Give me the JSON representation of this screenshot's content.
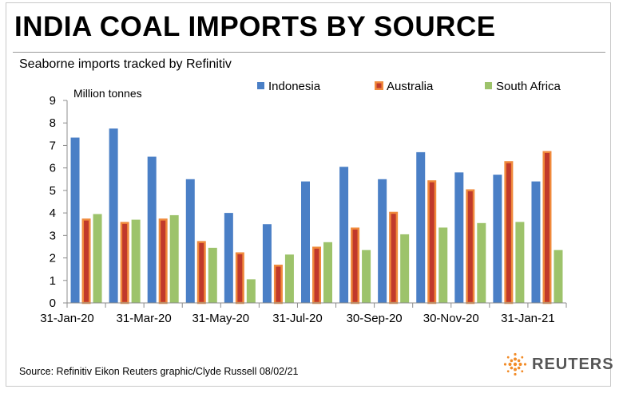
{
  "header": {
    "title": "INDIA COAL IMPORTS BY SOURCE",
    "subtitle": "Seaborne  imports tracked by Refinitiv"
  },
  "footer": {
    "source": "Source: Refinitiv Eikon     Reuters graphic/Clyde Russell 08/02/21",
    "logo_text": "REUTERS"
  },
  "colors": {
    "indonesia": "#4a7fc6",
    "australia_fill": "#c0392b",
    "australia_border": "#f08a3c",
    "south_africa": "#9dc36b",
    "axis": "#8c8c8c"
  },
  "chart_data": {
    "type": "bar",
    "ylabel": "Million tonnes",
    "ylim": [
      0,
      9
    ],
    "yticks": [
      0,
      1,
      2,
      3,
      4,
      5,
      6,
      7,
      8,
      9
    ],
    "x_tick_labels": [
      "31-Jan-20",
      "31-Mar-20",
      "31-May-20",
      "31-Jul-20",
      "30-Sep-20",
      "30-Nov-20",
      "31-Jan-21"
    ],
    "categories": [
      "Jan-20",
      "Feb-20",
      "Mar-20",
      "Apr-20",
      "May-20",
      "Jun-20",
      "Jul-20",
      "Aug-20",
      "Sep-20",
      "Oct-20",
      "Nov-20",
      "Dec-20",
      "Jan-21"
    ],
    "legend_position": "top",
    "series": [
      {
        "name": "Indonesia",
        "values": [
          7.35,
          7.75,
          6.5,
          5.5,
          4.0,
          3.5,
          5.4,
          6.05,
          5.5,
          6.7,
          5.8,
          5.7,
          5.4
        ]
      },
      {
        "name": "Australia",
        "values": [
          3.75,
          3.6,
          3.75,
          2.75,
          2.25,
          1.7,
          2.5,
          3.35,
          4.05,
          5.45,
          5.05,
          6.3,
          6.75
        ]
      },
      {
        "name": "South Africa",
        "values": [
          3.95,
          3.7,
          3.9,
          2.45,
          1.05,
          2.15,
          2.7,
          2.35,
          3.05,
          3.35,
          3.55,
          3.6,
          2.35
        ]
      }
    ]
  }
}
